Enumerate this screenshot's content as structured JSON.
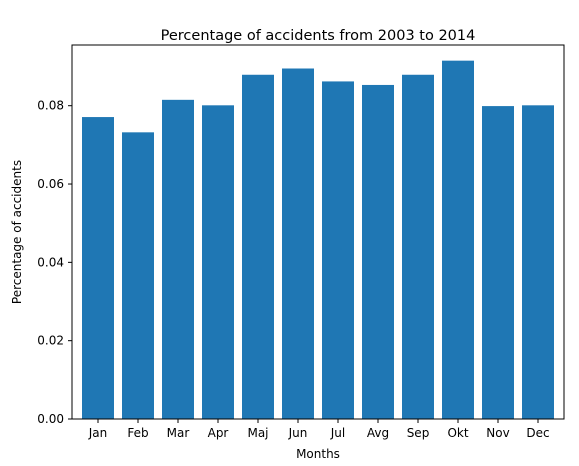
{
  "chart_data": {
    "type": "bar",
    "title": "Percentage of accidents from 2003 to 2014",
    "xlabel": "Months",
    "ylabel": "Percentage of accidents",
    "categories": [
      "Jan",
      "Feb",
      "Mar",
      "Apr",
      "Maj",
      "Jun",
      "Jul",
      "Avg",
      "Sep",
      "Okt",
      "Nov",
      "Dec"
    ],
    "values": [
      0.0771,
      0.0732,
      0.0815,
      0.0801,
      0.0879,
      0.0895,
      0.0862,
      0.0853,
      0.0879,
      0.0915,
      0.0799,
      0.0801
    ],
    "ylim": [
      0,
      0.0955
    ],
    "yticks": [
      0.0,
      0.02,
      0.04,
      0.06,
      0.08
    ],
    "ytick_labels": [
      "0.00",
      "0.02",
      "0.04",
      "0.06",
      "0.08"
    ],
    "bar_color": "#1f77b4",
    "grid": false
  }
}
